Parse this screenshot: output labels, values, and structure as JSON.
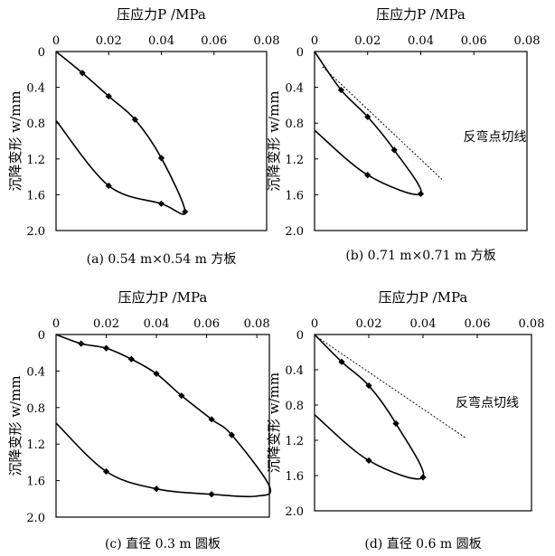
{
  "chart_data": [
    {
      "type": "line",
      "panel": "a",
      "xlabel": "压应力P /MPa",
      "ylabel": "沉降变形 w/mm",
      "caption": "(a) 0.54 m×0.54 m 方板",
      "xlim": [
        0,
        0.08
      ],
      "ylim": [
        0,
        2.0
      ],
      "y_inverted": true,
      "xticks": [
        "0",
        "0.02",
        "0.04",
        "0.06",
        "0.08"
      ],
      "yticks": [
        "0",
        "0.4",
        "0.8",
        "1.2",
        "1.6",
        "2.0"
      ],
      "series": [
        {
          "points": [
            [
              0,
              0
            ],
            [
              0.01,
              0.24
            ],
            [
              0.02,
              0.5
            ],
            [
              0.03,
              0.76
            ],
            [
              0.04,
              1.19
            ],
            [
              0.049,
              1.79
            ],
            [
              0.04,
              1.7
            ],
            [
              0.02,
              1.5
            ],
            [
              0,
              0.77
            ]
          ],
          "markers": [
            [
              0.01,
              0.24
            ],
            [
              0.02,
              0.5
            ],
            [
              0.03,
              0.76
            ],
            [
              0.04,
              1.19
            ],
            [
              0.049,
              1.79
            ],
            [
              0.04,
              1.7
            ],
            [
              0.02,
              1.5
            ]
          ]
        }
      ],
      "annotation": null
    },
    {
      "type": "line",
      "panel": "b",
      "xlabel": "压应力P /MPa",
      "ylabel": "沉降变形 w/mm",
      "caption": "(b) 0.71 m×0.71 m 方板",
      "xlim": [
        0,
        0.08
      ],
      "ylim": [
        0,
        2.0
      ],
      "y_inverted": true,
      "xticks": [
        "0",
        "0.02",
        "0.04",
        "0.06",
        "0.08"
      ],
      "yticks": [
        "0",
        "0.4",
        "0.8",
        "1.2",
        "1.6",
        "2.0"
      ],
      "series": [
        {
          "points": [
            [
              0,
              0
            ],
            [
              0.01,
              0.43
            ],
            [
              0.02,
              0.73
            ],
            [
              0.03,
              1.1
            ],
            [
              0.04,
              1.59
            ],
            [
              0.02,
              1.38
            ],
            [
              0,
              0.88
            ]
          ],
          "markers": [
            [
              0.01,
              0.43
            ],
            [
              0.02,
              0.73
            ],
            [
              0.03,
              1.1
            ],
            [
              0.04,
              1.59
            ],
            [
              0.02,
              1.38
            ]
          ]
        }
      ],
      "tangent": [
        [
          0.003,
          0.17
        ],
        [
          0.048,
          1.43
        ]
      ],
      "annotation": {
        "text": "反弯点切线",
        "x": 0.056,
        "y": 1.0
      }
    },
    {
      "type": "line",
      "panel": "c",
      "xlabel": "压应力P /MPa",
      "ylabel": "沉降变形 w/mm",
      "caption": "(c) 直径 0.3 m 圆板",
      "xlim": [
        0,
        0.085
      ],
      "ylim": [
        0,
        2.0
      ],
      "y_inverted": true,
      "xticks": [
        "0",
        "0.02",
        "0.04",
        "0.06",
        "0.08"
      ],
      "yticks": [
        "0",
        "0.4",
        "0.8",
        "1.2",
        "1.6",
        "2.0"
      ],
      "series": [
        {
          "points": [
            [
              0,
              0
            ],
            [
              0.01,
              0.1
            ],
            [
              0.02,
              0.15
            ],
            [
              0.03,
              0.27
            ],
            [
              0.04,
              0.43
            ],
            [
              0.05,
              0.67
            ],
            [
              0.062,
              0.93
            ],
            [
              0.07,
              1.1
            ],
            [
              0.085,
              1.66
            ],
            [
              0.08,
              1.77
            ],
            [
              0.062,
              1.75
            ],
            [
              0.04,
              1.69
            ],
            [
              0.02,
              1.5
            ],
            [
              0,
              0.97
            ]
          ],
          "markers": [
            [
              0.01,
              0.1
            ],
            [
              0.02,
              0.15
            ],
            [
              0.03,
              0.27
            ],
            [
              0.04,
              0.43
            ],
            [
              0.05,
              0.67
            ],
            [
              0.062,
              0.93
            ],
            [
              0.07,
              1.1
            ],
            [
              0.062,
              1.75
            ],
            [
              0.04,
              1.69
            ],
            [
              0.02,
              1.5
            ]
          ]
        }
      ],
      "annotation": null
    },
    {
      "type": "line",
      "panel": "d",
      "xlabel": "压应力P /MPa",
      "ylabel": "沉降变形 w/mm",
      "caption": "(d) 直径 0.6 m 圆板",
      "xlim": [
        0,
        0.08
      ],
      "ylim": [
        0,
        2.0
      ],
      "y_inverted": true,
      "xticks": [
        "0",
        "0.02",
        "0.04",
        "0.06",
        "0.08"
      ],
      "yticks": [
        "0",
        "0.4",
        "0.8",
        "1.2",
        "1.6",
        "2.0"
      ],
      "series": [
        {
          "points": [
            [
              0,
              0
            ],
            [
              0.01,
              0.31
            ],
            [
              0.02,
              0.58
            ],
            [
              0.03,
              1.01
            ],
            [
              0.04,
              1.62
            ],
            [
              0.02,
              1.43
            ],
            [
              0,
              0.91
            ]
          ],
          "markers": [
            [
              0.01,
              0.31
            ],
            [
              0.02,
              0.58
            ],
            [
              0.03,
              1.01
            ],
            [
              0.04,
              1.62
            ],
            [
              0.02,
              1.43
            ]
          ]
        }
      ],
      "tangent": [
        [
          0.002,
          0.05
        ],
        [
          0.056,
          1.18
        ]
      ],
      "annotation": {
        "text": "反弯点切线",
        "x": 0.052,
        "y": 0.82
      }
    }
  ]
}
